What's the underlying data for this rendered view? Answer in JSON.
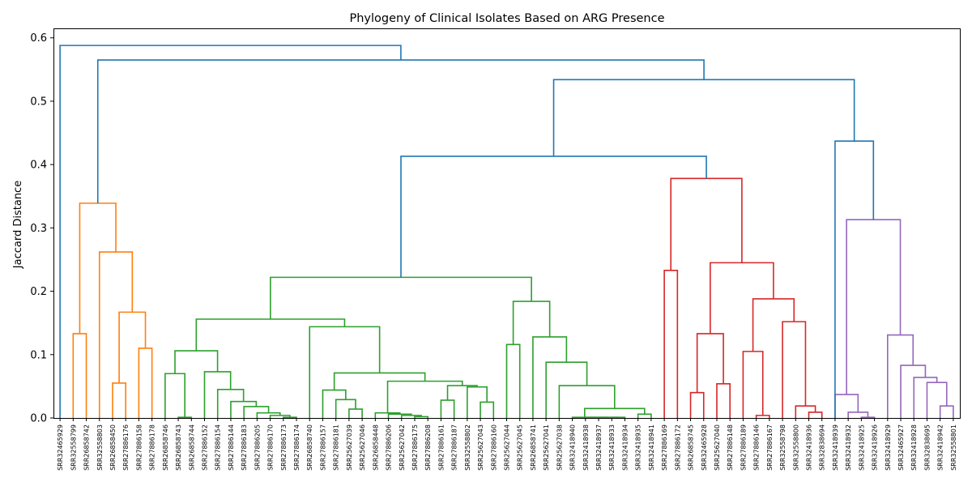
{
  "chart_data": {
    "type": "dendrogram",
    "title": "Phylogeny of Clinical Isolates Based on ARG Presence",
    "xlabel": "",
    "ylabel": "Jaccard Distance",
    "ylim": [
      0,
      0.615
    ],
    "yticks": [
      0.0,
      0.1,
      0.2,
      0.3,
      0.4,
      0.5,
      0.6
    ],
    "ytick_labels": [
      "0.0",
      "0.1",
      "0.2",
      "0.3",
      "0.4",
      "0.5",
      "0.6"
    ],
    "grid": false,
    "colors": {
      "orange": "#ff7f0e",
      "green": "#2ca02c",
      "red": "#d62728",
      "purple": "#9467bd",
      "blue": "#1f77b4"
    },
    "leaves": [
      "SRR32465929",
      "SRR32558799",
      "SRR26858742",
      "SRR32558803",
      "SRR26858450",
      "SRR27886176",
      "SRR27886158",
      "SRR27886178",
      "SRR26858746",
      "SRR26858743",
      "SRR26858744",
      "SRR27886152",
      "SRR27886154",
      "SRR27886144",
      "SRR27886183",
      "SRR27886205",
      "SRR27886170",
      "SRR27886173",
      "SRR27886174",
      "SRR26858740",
      "SRR27886157",
      "SRR27886181",
      "SRR25627039",
      "SRR25627046",
      "SRR26858448",
      "SRR27886206",
      "SRR25627042",
      "SRR27886175",
      "SRR27886208",
      "SRR27886161",
      "SRR27886187",
      "SRR32558802",
      "SRR25627043",
      "SRR27886160",
      "SRR25627044",
      "SRR25627045",
      "SRR26858741",
      "SRR25627041",
      "SRR25627038",
      "SRR32418940",
      "SRR32418938",
      "SRR32418937",
      "SRR32418933",
      "SRR32418934",
      "SRR32418935",
      "SRR32418941",
      "SRR27886169",
      "SRR27886172",
      "SRR26858745",
      "SRR32465928",
      "SRR25627040",
      "SRR27886148",
      "SRR27886189",
      "SRR27886146",
      "SRR27886167",
      "SRR32558798",
      "SRR32558800",
      "SRR32418936",
      "SRR32838694",
      "SRR32418939",
      "SRR32418932",
      "SRR32418925",
      "SRR32418926",
      "SRR32418929",
      "SRR32465927",
      "SRR32418928",
      "SRR32838695",
      "SRR32418942",
      "SRR32558801"
    ],
    "links": [
      {
        "l": 1,
        "r": 2,
        "h": 0.133,
        "c": "orange"
      },
      {
        "l": 4,
        "r": 5,
        "h": 0.055,
        "c": "orange"
      },
      {
        "l": 6,
        "r": 7,
        "h": 0.11,
        "c": "orange"
      },
      {
        "l": "n2",
        "r": "n3",
        "h": 0.167,
        "c": "orange"
      },
      {
        "l": 3,
        "r": "n4",
        "h": 0.262,
        "c": "orange"
      },
      {
        "l": "n1",
        "r": "n5",
        "h": 0.339,
        "c": "orange"
      },
      {
        "l": 9,
        "r": 10,
        "h": 0.001,
        "c": "green"
      },
      {
        "l": 8,
        "r": "n7",
        "h": 0.07,
        "c": "green"
      },
      {
        "l": 17,
        "r": 18,
        "h": 0.001,
        "c": "green"
      },
      {
        "l": 16,
        "r": "n9",
        "h": 0.004,
        "c": "green"
      },
      {
        "l": 15,
        "r": "n10",
        "h": 0.008,
        "c": "green"
      },
      {
        "l": 14,
        "r": "n11",
        "h": 0.018,
        "c": "green"
      },
      {
        "l": 13,
        "r": "n12",
        "h": 0.026,
        "c": "green"
      },
      {
        "l": 12,
        "r": "n13",
        "h": 0.045,
        "c": "green"
      },
      {
        "l": 11,
        "r": "n14",
        "h": 0.073,
        "c": "green"
      },
      {
        "l": "n8",
        "r": "n15",
        "h": 0.106,
        "c": "green"
      },
      {
        "l": 22,
        "r": 23,
        "h": 0.014,
        "c": "green"
      },
      {
        "l": 21,
        "r": "n17",
        "h": 0.029,
        "c": "green"
      },
      {
        "l": 20,
        "r": "n18",
        "h": 0.044,
        "c": "green"
      },
      {
        "l": 27,
        "r": 28,
        "h": 0.002,
        "c": "green"
      },
      {
        "l": 26,
        "r": "n20",
        "h": 0.004,
        "c": "green"
      },
      {
        "l": 25,
        "r": "n21",
        "h": 0.006,
        "c": "green"
      },
      {
        "l": 24,
        "r": "n22",
        "h": 0.008,
        "c": "green"
      },
      {
        "l": 29,
        "r": 30,
        "h": 0.028,
        "c": "green"
      },
      {
        "l": 32,
        "r": 33,
        "h": 0.025,
        "c": "green"
      },
      {
        "l": 31,
        "r": "n25",
        "h": 0.049,
        "c": "green"
      },
      {
        "l": "n24",
        "r": "n26",
        "h": 0.051,
        "c": "green"
      },
      {
        "l": "n23",
        "r": "n27",
        "h": 0.058,
        "c": "green"
      },
      {
        "l": "n19",
        "r": "n28",
        "h": 0.071,
        "c": "green"
      },
      {
        "l": 19,
        "r": "n29",
        "h": 0.144,
        "c": "green"
      },
      {
        "l": "n16",
        "r": "n30",
        "h": 0.156,
        "c": "green"
      },
      {
        "l": 34,
        "r": 35,
        "h": 0.116,
        "c": "green"
      },
      {
        "l": 42,
        "r": 43,
        "h": 0.001,
        "c": "green"
      },
      {
        "l": 41,
        "r": "n33",
        "h": 0.001,
        "c": "green"
      },
      {
        "l": 40,
        "r": "n34",
        "h": 0.001,
        "c": "green"
      },
      {
        "l": 39,
        "r": "n35",
        "h": 0.001,
        "c": "green"
      },
      {
        "l": 44,
        "r": 45,
        "h": 0.006,
        "c": "green"
      },
      {
        "l": "n36",
        "r": "n37",
        "h": 0.015,
        "c": "green"
      },
      {
        "l": 38,
        "r": "n38",
        "h": 0.051,
        "c": "green"
      },
      {
        "l": 37,
        "r": "n39",
        "h": 0.088,
        "c": "green"
      },
      {
        "l": 36,
        "r": "n40",
        "h": 0.128,
        "c": "green"
      },
      {
        "l": "n32",
        "r": "n41",
        "h": 0.184,
        "c": "green"
      },
      {
        "l": "n31",
        "r": "n42",
        "h": 0.222,
        "c": "green"
      },
      {
        "l": 46,
        "r": 47,
        "h": 0.233,
        "c": "red"
      },
      {
        "l": 48,
        "r": 49,
        "h": 0.04,
        "c": "red"
      },
      {
        "l": 50,
        "r": 51,
        "h": 0.054,
        "c": "red"
      },
      {
        "l": "n45",
        "r": "n46",
        "h": 0.133,
        "c": "red"
      },
      {
        "l": 53,
        "r": 54,
        "h": 0.004,
        "c": "red"
      },
      {
        "l": 52,
        "r": "n48",
        "h": 0.105,
        "c": "red"
      },
      {
        "l": 57,
        "r": 58,
        "h": 0.009,
        "c": "red"
      },
      {
        "l": 56,
        "r": "n50",
        "h": 0.019,
        "c": "red"
      },
      {
        "l": 55,
        "r": "n51",
        "h": 0.152,
        "c": "red"
      },
      {
        "l": "n49",
        "r": "n52",
        "h": 0.188,
        "c": "red"
      },
      {
        "l": "n47",
        "r": "n53",
        "h": 0.245,
        "c": "red"
      },
      {
        "l": "n44",
        "r": "n54",
        "h": 0.378,
        "c": "red"
      },
      {
        "l": 61,
        "r": 62,
        "h": 0.001,
        "c": "purple"
      },
      {
        "l": 60,
        "r": "n56",
        "h": 0.009,
        "c": "purple"
      },
      {
        "l": 59,
        "r": "n57",
        "h": 0.037,
        "c": "purple"
      },
      {
        "l": 67,
        "r": 68,
        "h": 0.019,
        "c": "purple"
      },
      {
        "l": 66,
        "r": "n59",
        "h": 0.056,
        "c": "purple"
      },
      {
        "l": 65,
        "r": "n60",
        "h": 0.064,
        "c": "purple"
      },
      {
        "l": 64,
        "r": "n61",
        "h": 0.083,
        "c": "purple"
      },
      {
        "l": 63,
        "r": "n62",
        "h": 0.131,
        "c": "purple"
      },
      {
        "l": "n58",
        "r": "n63",
        "h": 0.313,
        "c": "purple"
      },
      {
        "l": "n43",
        "r": "n55",
        "h": 0.413,
        "c": "blue"
      },
      {
        "l": 58,
        "r": "n64",
        "h": 0.437,
        "c": "blue",
        "lpos": 59
      },
      {
        "l": "n65",
        "r": "n66",
        "h": 0.534,
        "c": "blue"
      },
      {
        "l": "n6",
        "r": "n67",
        "h": 0.565,
        "c": "blue"
      },
      {
        "l": 0,
        "r": "n68",
        "h": 0.588,
        "c": "blue"
      }
    ]
  }
}
